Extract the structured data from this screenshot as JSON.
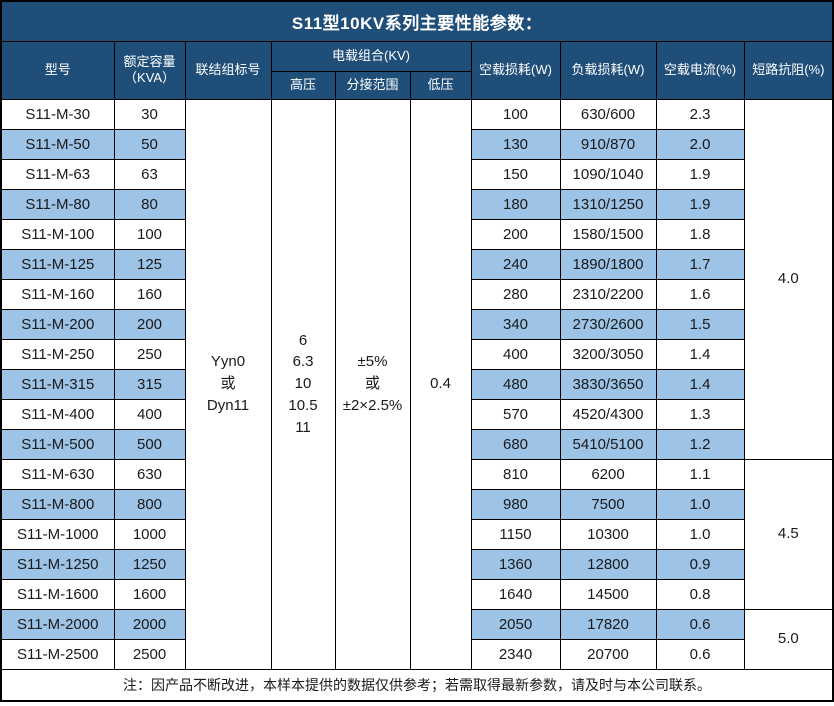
{
  "title": "S11型10KV系列主要性能参数：",
  "note": "注：因产品不断改进，本样本提供的数据仅供参考；若需取得最新参数，请及时与本公司联系。",
  "colors": {
    "header_bg": "#1F4E79",
    "alt_row_bg": "#9DC3E6",
    "border": "#000000",
    "header_text": "#FFFFFF",
    "body_text": "#1A1A1A"
  },
  "table": {
    "headers": {
      "model": "型号",
      "capacity": "额定容量\n（KVA）",
      "connection": "联结组标号",
      "voltage_combo": "电载组合(KV)",
      "hv": "高压",
      "tap_range": "分接范围",
      "lv": "低压",
      "no_load_loss": "空载损耗(W)",
      "load_loss": "负载损耗(W)",
      "no_load_current": "空载电流(%)",
      "impedance": "短路抗阻(%)"
    },
    "merged": {
      "connection": "Yyn0\n或\nDyn11",
      "hv": "6\n6.3\n10\n10.5\n11",
      "tap_range": "±5%\n或\n±2×2.5%",
      "lv": "0.4"
    },
    "impedance_groups": [
      {
        "value": "4.0",
        "rows": 12
      },
      {
        "value": "4.5",
        "rows": 5
      },
      {
        "value": "5.0",
        "rows": 2
      }
    ],
    "rows": [
      {
        "model": "S11-M-30",
        "capacity": "30",
        "no_load_loss": "100",
        "load_loss": "630/600",
        "no_load_current": "2.3"
      },
      {
        "model": "S11-M-50",
        "capacity": "50",
        "no_load_loss": "130",
        "load_loss": "910/870",
        "no_load_current": "2.0"
      },
      {
        "model": "S11-M-63",
        "capacity": "63",
        "no_load_loss": "150",
        "load_loss": "1090/1040",
        "no_load_current": "1.9"
      },
      {
        "model": "S11-M-80",
        "capacity": "80",
        "no_load_loss": "180",
        "load_loss": "1310/1250",
        "no_load_current": "1.9"
      },
      {
        "model": "S11-M-100",
        "capacity": "100",
        "no_load_loss": "200",
        "load_loss": "1580/1500",
        "no_load_current": "1.8"
      },
      {
        "model": "S11-M-125",
        "capacity": "125",
        "no_load_loss": "240",
        "load_loss": "1890/1800",
        "no_load_current": "1.7"
      },
      {
        "model": "S11-M-160",
        "capacity": "160",
        "no_load_loss": "280",
        "load_loss": "2310/2200",
        "no_load_current": "1.6"
      },
      {
        "model": "S11-M-200",
        "capacity": "200",
        "no_load_loss": "340",
        "load_loss": "2730/2600",
        "no_load_current": "1.5"
      },
      {
        "model": "S11-M-250",
        "capacity": "250",
        "no_load_loss": "400",
        "load_loss": "3200/3050",
        "no_load_current": "1.4"
      },
      {
        "model": "S11-M-315",
        "capacity": "315",
        "no_load_loss": "480",
        "load_loss": "3830/3650",
        "no_load_current": "1.4"
      },
      {
        "model": "S11-M-400",
        "capacity": "400",
        "no_load_loss": "570",
        "load_loss": "4520/4300",
        "no_load_current": "1.3"
      },
      {
        "model": "S11-M-500",
        "capacity": "500",
        "no_load_loss": "680",
        "load_loss": "5410/5100",
        "no_load_current": "1.2"
      },
      {
        "model": "S11-M-630",
        "capacity": "630",
        "no_load_loss": "810",
        "load_loss": "6200",
        "no_load_current": "1.1"
      },
      {
        "model": "S11-M-800",
        "capacity": "800",
        "no_load_loss": "980",
        "load_loss": "7500",
        "no_load_current": "1.0"
      },
      {
        "model": "S11-M-1000",
        "capacity": "1000",
        "no_load_loss": "1150",
        "load_loss": "10300",
        "no_load_current": "1.0"
      },
      {
        "model": "S11-M-1250",
        "capacity": "1250",
        "no_load_loss": "1360",
        "load_loss": "12800",
        "no_load_current": "0.9"
      },
      {
        "model": "S11-M-1600",
        "capacity": "1600",
        "no_load_loss": "1640",
        "load_loss": "14500",
        "no_load_current": "0.8"
      },
      {
        "model": "S11-M-2000",
        "capacity": "2000",
        "no_load_loss": "2050",
        "load_loss": "17820",
        "no_load_current": "0.6"
      },
      {
        "model": "S11-M-2500",
        "capacity": "2500",
        "no_load_loss": "2340",
        "load_loss": "20700",
        "no_load_current": "0.6"
      }
    ]
  }
}
